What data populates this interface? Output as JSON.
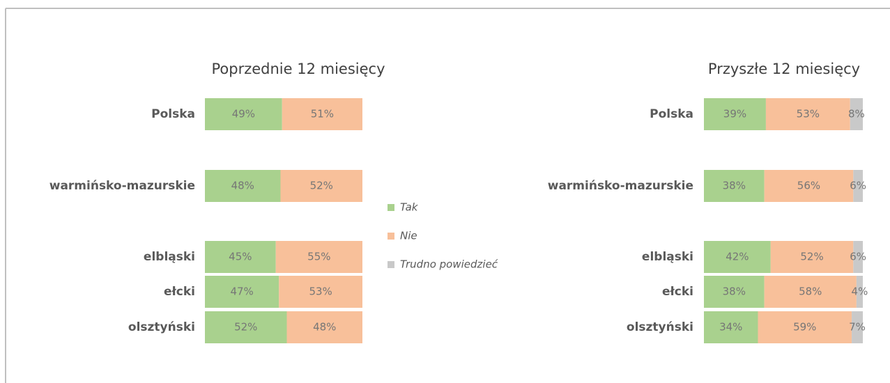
{
  "legend": [
    {
      "name": "Tak",
      "color": "#a9d18e"
    },
    {
      "name": "Nie",
      "color": "#f8c09a"
    },
    {
      "name": "Trudno powiedzieć",
      "color": "#c9c9c9"
    }
  ],
  "chart_data": [
    {
      "type": "bar",
      "title": "Poprzednie 12 miesięcy",
      "categories": [
        "Polska",
        "warmińsko-mazurskie",
        "elbląski",
        "ełcki",
        "olsztyński"
      ],
      "xlim": [
        0,
        100
      ],
      "series": [
        {
          "values": [
            49,
            48,
            45,
            47,
            52
          ],
          "value_labels": [
            "49%",
            "48%",
            "45%",
            "47%",
            "52%"
          ]
        },
        {
          "values": [
            51,
            52,
            55,
            53,
            48
          ],
          "value_labels": [
            "51%",
            "52%",
            "55%",
            "53%",
            "48%"
          ]
        }
      ]
    },
    {
      "type": "bar",
      "title": "Przyszłe 12 miesięcy",
      "categories": [
        "Polska",
        "warmińsko-mazurskie",
        "elbląski",
        "ełcki",
        "olsztyński"
      ],
      "xlim": [
        0,
        100
      ],
      "series": [
        {
          "values": [
            39,
            38,
            42,
            38,
            34
          ],
          "value_labels": [
            "39%",
            "38%",
            "42%",
            "38%",
            "34%"
          ]
        },
        {
          "values": [
            53,
            56,
            52,
            58,
            59
          ],
          "value_labels": [
            "53%",
            "56%",
            "52%",
            "58%",
            "59%"
          ]
        },
        {
          "values": [
            8,
            6,
            6,
            4,
            7
          ],
          "value_labels": [
            "8%",
            "6%",
            "6%",
            "4%",
            "7%"
          ]
        }
      ]
    }
  ]
}
